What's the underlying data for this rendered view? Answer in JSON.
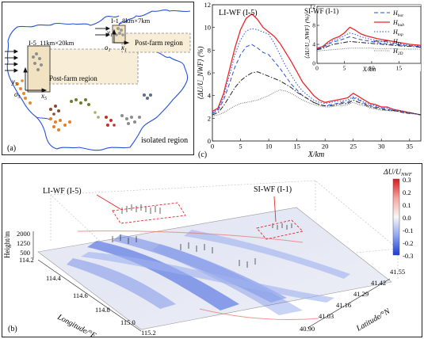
{
  "panel_a": {
    "label": "(a)",
    "box_i5": "I-5_11km×20km",
    "box_i1": "I-1_8km×7km",
    "post_farm_i5": "Post-farm region",
    "post_farm_i1": "Post-farm region",
    "isolated": "isolated region",
    "axis_x5": "x",
    "axis_y5": "y",
    "origin5": "o",
    "sub5": "5",
    "axis_x1": "x",
    "axis_y1": "y",
    "origin1": "o",
    "sub1": "1"
  },
  "panel_b": {
    "label": "(b)",
    "annot_li": "LI-WF (I-5)",
    "annot_si": "SI-WF (I-1)",
    "colorbar_title": "ΔU/U",
    "colorbar_title_sub": "NWF",
    "colorbar_ticks": [
      "0.3",
      "0.2",
      "0.1",
      "0.0",
      "-0.1",
      "-0.2",
      "-0.3"
    ],
    "height_label": "Height/m",
    "height_ticks": [
      "2000",
      "1250",
      "500"
    ],
    "lon_label": "Longitude/°E",
    "lon_ticks": [
      "114.2",
      "114.4",
      "114.6",
      "114.8",
      "115.0",
      "115.2"
    ],
    "lat_label": "Latitude/°N",
    "lat_ticks": [
      "41.55",
      "41.42",
      "41.29",
      "41.16",
      "41.03",
      "40.90"
    ]
  },
  "chart_data": [
    {
      "type": "line",
      "title": "LI-WF (I-5)",
      "xlabel": "X/km",
      "ylabel": "⟨ΔU/U_NWF⟩ (%)",
      "xlim": [
        0,
        37
      ],
      "ylim": [
        0,
        12
      ],
      "x_ticks": [
        0,
        5,
        10,
        15,
        20,
        25,
        30,
        35
      ],
      "y_ticks": [
        0,
        2,
        4,
        6,
        8,
        10,
        12
      ],
      "panel_label": "(c)",
      "series": [
        {
          "name": "H_hub",
          "color": "#e8262b",
          "dash": "",
          "x": [
            0,
            1,
            2,
            3,
            4,
            5,
            6,
            7,
            8,
            9,
            10,
            11,
            12,
            13,
            14,
            15,
            16,
            17,
            18,
            19,
            20,
            21,
            22,
            23,
            24,
            25,
            26,
            27,
            28,
            29,
            30,
            31,
            32,
            33,
            34,
            35,
            36,
            37
          ],
          "y": [
            2.6,
            2.9,
            4.2,
            6.2,
            8.2,
            9.8,
            10.8,
            11.2,
            10.7,
            10.0,
            9.6,
            9.2,
            8.6,
            7.8,
            7.0,
            6.1,
            5.2,
            4.6,
            4.0,
            3.6,
            3.4,
            3.5,
            3.6,
            3.7,
            3.8,
            4.2,
            3.9,
            3.6,
            3.3,
            3.2,
            3.0,
            3.0,
            2.8,
            2.7,
            2.6,
            2.5,
            2.4,
            2.3
          ]
        },
        {
          "name": "H_top",
          "color": "#2a4fd6",
          "dash": "1.5,2",
          "x": [
            0,
            1,
            2,
            3,
            4,
            5,
            6,
            7,
            8,
            9,
            10,
            11,
            12,
            13,
            14,
            15,
            16,
            17,
            18,
            19,
            20,
            21,
            22,
            23,
            24,
            25,
            26,
            27,
            28,
            29,
            30,
            31,
            32,
            33,
            34,
            35,
            36,
            37
          ],
          "y": [
            2.5,
            2.8,
            3.9,
            5.7,
            7.6,
            8.9,
            9.7,
            9.9,
            9.8,
            9.6,
            9.4,
            8.6,
            7.6,
            6.6,
            5.8,
            5.0,
            4.4,
            4.0,
            3.6,
            3.4,
            3.3,
            3.4,
            3.5,
            3.5,
            3.6,
            3.9,
            3.7,
            3.4,
            3.2,
            3.1,
            2.9,
            2.9,
            2.8,
            2.7,
            2.6,
            2.5,
            2.4,
            2.3
          ]
        },
        {
          "name": "H_bot",
          "color": "#2a4fd6",
          "dash": "5,3",
          "x": [
            0,
            1,
            2,
            3,
            4,
            5,
            6,
            7,
            8,
            9,
            10,
            11,
            12,
            13,
            14,
            15,
            16,
            17,
            18,
            19,
            20,
            21,
            22,
            23,
            24,
            25,
            26,
            27,
            28,
            29,
            30,
            31,
            32,
            33,
            34,
            35,
            36,
            37
          ],
          "y": [
            2.4,
            2.7,
            3.6,
            5.0,
            6.5,
            7.6,
            8.3,
            8.5,
            8.2,
            7.8,
            7.6,
            7.0,
            6.4,
            5.7,
            5.0,
            4.5,
            4.0,
            3.7,
            3.4,
            3.2,
            3.1,
            3.2,
            3.3,
            3.4,
            3.4,
            3.8,
            3.6,
            3.3,
            3.1,
            3.0,
            2.9,
            2.8,
            2.7,
            2.6,
            2.5,
            2.4,
            2.4,
            2.3
          ]
        },
        {
          "name": "H_D",
          "color": "#222222",
          "dash": "6,2,1.5,2",
          "x": [
            0,
            1,
            2,
            3,
            4,
            5,
            6,
            7,
            8,
            9,
            10,
            11,
            12,
            13,
            14,
            15,
            16,
            17,
            18,
            19,
            20,
            21,
            22,
            23,
            24,
            25,
            26,
            27,
            28,
            29,
            30,
            31,
            32,
            33,
            34,
            35,
            36,
            37
          ],
          "y": [
            2.3,
            2.5,
            3.1,
            3.9,
            4.7,
            5.3,
            5.7,
            6.0,
            6.1,
            5.9,
            5.7,
            5.5,
            5.3,
            5.0,
            4.7,
            4.3,
            4.0,
            3.7,
            3.4,
            3.2,
            3.1,
            3.1,
            3.2,
            3.3,
            3.3,
            3.6,
            3.4,
            3.2,
            3.0,
            2.9,
            2.8,
            2.7,
            2.7,
            2.6,
            2.5,
            2.5,
            2.4,
            2.3
          ]
        },
        {
          "name": "H_2D",
          "color": "#555555",
          "dash": "0.8,1.5",
          "x": [
            0,
            1,
            2,
            3,
            4,
            5,
            6,
            7,
            8,
            9,
            10,
            11,
            12,
            13,
            14,
            15,
            16,
            17,
            18,
            19,
            20,
            21,
            22,
            23,
            24,
            25,
            26,
            27,
            28,
            29,
            30,
            31,
            32,
            33,
            34,
            35,
            36,
            37
          ],
          "y": [
            2.2,
            2.3,
            2.5,
            2.8,
            3.1,
            3.3,
            3.4,
            3.5,
            3.6,
            3.8,
            4.0,
            4.3,
            4.5,
            4.4,
            4.2,
            3.9,
            3.6,
            3.4,
            3.2,
            3.1,
            3.0,
            3.0,
            3.1,
            3.1,
            3.2,
            3.4,
            3.2,
            3.1,
            2.9,
            2.8,
            2.7,
            2.7,
            2.6,
            2.6,
            2.5,
            2.4,
            2.4,
            2.3
          ]
        }
      ]
    },
    {
      "type": "line",
      "title": "SI-WF (I-1)",
      "xlabel": "X/km",
      "ylabel": "⟨ΔU/U_NWF⟩ (%)",
      "xlim": [
        0,
        19
      ],
      "ylim": [
        0,
        12
      ],
      "x_ticks": [
        0,
        5,
        10,
        15
      ],
      "y_ticks": [
        0,
        4,
        8,
        12
      ],
      "legend": [
        "H_bot",
        "H_hub",
        "H_top",
        "H_D",
        "H_2D"
      ],
      "series": [
        {
          "name": "H_hub",
          "color": "#e8262b",
          "dash": "",
          "x": [
            0,
            1,
            2,
            3,
            4,
            5,
            6,
            7,
            8,
            9,
            10,
            11,
            12,
            13,
            14,
            15,
            16,
            17,
            18,
            19
          ],
          "y": [
            3.2,
            3.5,
            4.5,
            5.2,
            5.6,
            6.4,
            7.6,
            7.0,
            6.2,
            5.8,
            5.5,
            5.2,
            5.0,
            4.8,
            4.6,
            4.4,
            4.2,
            4.0,
            3.9,
            3.8
          ]
        },
        {
          "name": "H_top",
          "color": "#2a4fd6",
          "dash": "1.5,2",
          "x": [
            0,
            1,
            2,
            3,
            4,
            5,
            6,
            7,
            8,
            9,
            10,
            11,
            12,
            13,
            14,
            15,
            16,
            17,
            18,
            19
          ],
          "y": [
            3.1,
            3.4,
            4.2,
            4.8,
            5.2,
            5.8,
            6.4,
            6.1,
            5.6,
            5.3,
            5.0,
            4.8,
            4.6,
            4.4,
            4.3,
            4.1,
            3.9,
            3.8,
            3.7,
            3.6
          ]
        },
        {
          "name": "H_bot",
          "color": "#2a4fd6",
          "dash": "5,3",
          "x": [
            0,
            1,
            2,
            3,
            4,
            5,
            6,
            7,
            8,
            9,
            10,
            11,
            12,
            13,
            14,
            15,
            16,
            17,
            18,
            19
          ],
          "y": [
            3.0,
            3.3,
            4.0,
            4.5,
            4.8,
            5.2,
            5.6,
            5.3,
            5.0,
            4.8,
            4.6,
            4.4,
            4.2,
            4.1,
            4.0,
            3.9,
            3.8,
            3.7,
            3.6,
            3.5
          ]
        },
        {
          "name": "H_D",
          "color": "#222222",
          "dash": "6,2,1.5,2",
          "x": [
            0,
            1,
            2,
            3,
            4,
            5,
            6,
            7,
            8,
            9,
            10,
            11,
            12,
            13,
            14,
            15,
            16,
            17,
            18,
            19
          ],
          "y": [
            2.9,
            3.1,
            3.6,
            4.0,
            4.2,
            4.4,
            4.6,
            4.5,
            4.4,
            4.3,
            4.2,
            4.1,
            4.0,
            3.9,
            3.8,
            3.7,
            3.6,
            3.6,
            3.5,
            3.4
          ]
        },
        {
          "name": "H_2D",
          "color": "#555555",
          "dash": "0.8,1.5",
          "x": [
            0,
            1,
            2,
            3,
            4,
            5,
            6,
            7,
            8,
            9,
            10,
            11,
            12,
            13,
            14,
            15,
            16,
            17,
            18,
            19
          ],
          "y": [
            2.6,
            2.7,
            2.8,
            2.9,
            3.0,
            3.1,
            3.2,
            3.2,
            3.2,
            3.2,
            3.2,
            3.1,
            3.1,
            3.1,
            3.1,
            3.0,
            3.0,
            3.0,
            3.0,
            3.0
          ]
        }
      ]
    }
  ]
}
